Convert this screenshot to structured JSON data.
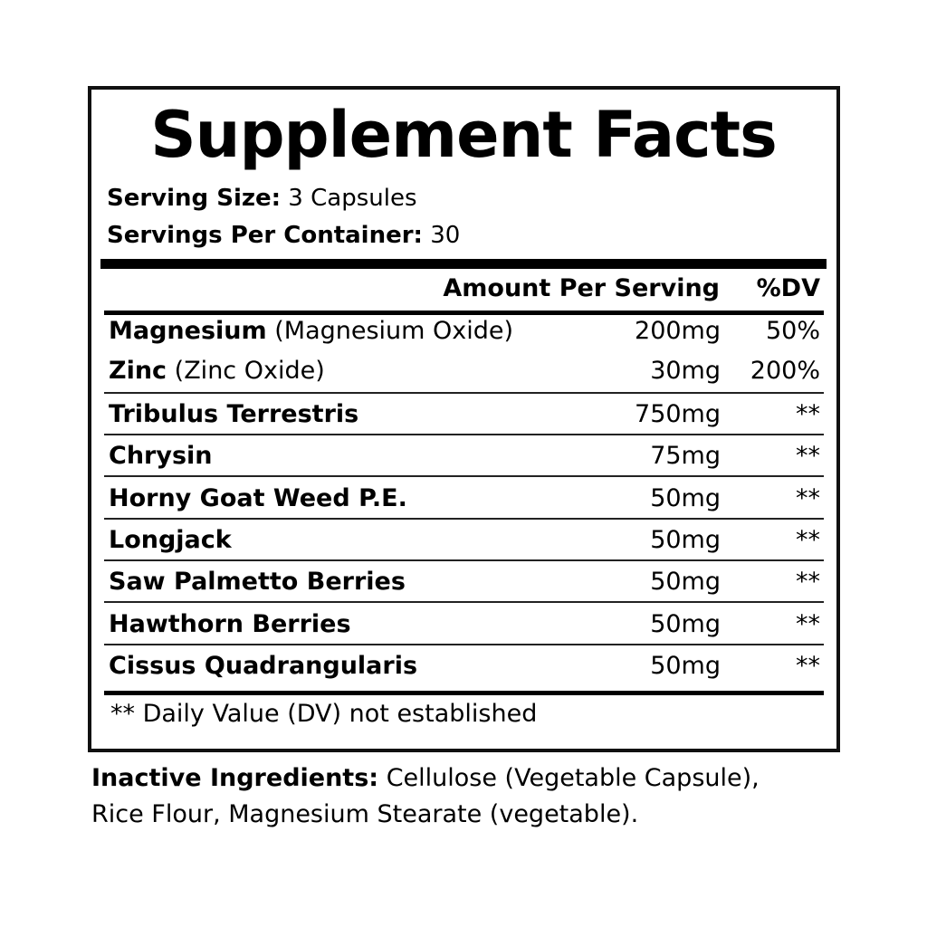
{
  "title": "Supplement Facts",
  "serving_size": {
    "label": "Serving Size:",
    "value": "3 Capsules"
  },
  "servings_per_container": {
    "label": "Servings Per Container:",
    "value": "30"
  },
  "header": {
    "amount": "Amount Per Serving",
    "dv": "%DV"
  },
  "rows": [
    {
      "name": "Magnesium",
      "detail": "(Magnesium Oxide)",
      "amount": "200mg",
      "dv": "50%"
    },
    {
      "name": "Zinc",
      "detail": "(Zinc Oxide)",
      "amount": "30mg",
      "dv": "200%"
    },
    {
      "name": "Tribulus Terrestris",
      "detail": "",
      "amount": "750mg",
      "dv": "**"
    },
    {
      "name": "Chrysin",
      "detail": "",
      "amount": "75mg",
      "dv": "**"
    },
    {
      "name": "Horny Goat Weed P.E.",
      "detail": "",
      "amount": "50mg",
      "dv": "**"
    },
    {
      "name": "Longjack",
      "detail": "",
      "amount": "50mg",
      "dv": "**"
    },
    {
      "name": "Saw Palmetto Berries",
      "detail": "",
      "amount": "50mg",
      "dv": "**"
    },
    {
      "name": "Hawthorn Berries",
      "detail": "",
      "amount": "50mg",
      "dv": "**"
    },
    {
      "name": "Cissus Quadrangularis",
      "detail": "",
      "amount": "50mg",
      "dv": "**"
    }
  ],
  "footnote": "** Daily Value (DV) not established",
  "inactive": {
    "label": "Inactive Ingredients:",
    "line1": "Cellulose (Vegetable Capsule),",
    "line2": "Rice Flour, Magnesium Stearate (vegetable)."
  }
}
